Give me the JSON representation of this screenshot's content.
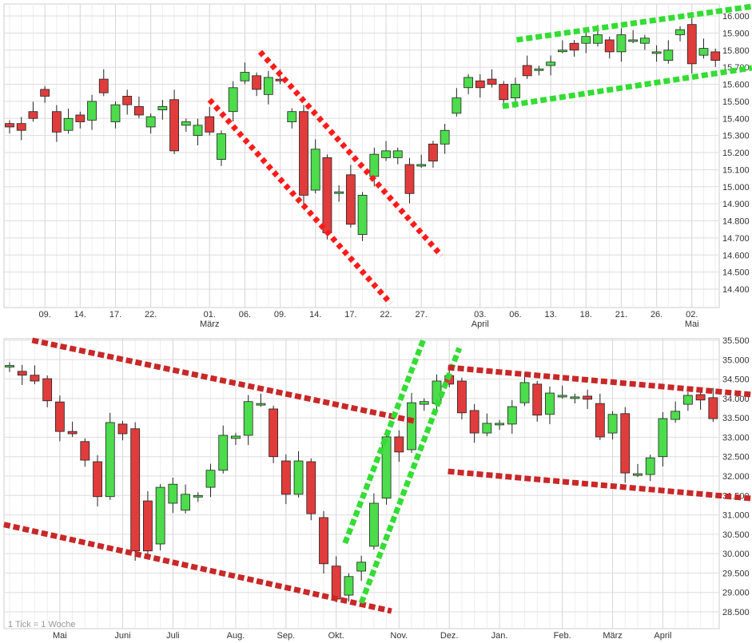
{
  "colors": {
    "up": "#4cdc4c",
    "down": "#e03c3c",
    "grid": "#dddddd",
    "trend_red_top": "#ff1a1a",
    "trend_red_bottom": "#c82828",
    "trend_green": "#33dd33"
  },
  "chart_data": [
    {
      "type": "candlestick",
      "interval": "daily",
      "ylim": [
        14300,
        16080
      ],
      "yticks": [
        "14.400",
        "14.500",
        "14.600",
        "14.700",
        "14.800",
        "14.900",
        "15.000",
        "15.100",
        "15.200",
        "15.300",
        "15.400",
        "15.500",
        "15.600",
        "15.700",
        "15.800",
        "15.900",
        "16.000"
      ],
      "xticks": [
        {
          "i": 3,
          "label": "09."
        },
        {
          "i": 6,
          "label": "14."
        },
        {
          "i": 9,
          "label": "17."
        },
        {
          "i": 12,
          "label": "22."
        },
        {
          "i": 17,
          "label": "01.",
          "month": "März"
        },
        {
          "i": 20,
          "label": "06."
        },
        {
          "i": 23,
          "label": "09."
        },
        {
          "i": 26,
          "label": "14."
        },
        {
          "i": 29,
          "label": "17."
        },
        {
          "i": 32,
          "label": "22."
        },
        {
          "i": 35,
          "label": "27."
        },
        {
          "i": 40,
          "label": "03.",
          "month": "April"
        },
        {
          "i": 43,
          "label": "06."
        },
        {
          "i": 46,
          "label": "13."
        },
        {
          "i": 49,
          "label": "18."
        },
        {
          "i": 52,
          "label": "21."
        },
        {
          "i": 55,
          "label": "26."
        },
        {
          "i": 58,
          "label": "02.",
          "month": "Mai"
        }
      ],
      "oc": [
        [
          15370,
          15350
        ],
        [
          15370,
          15330
        ],
        [
          15440,
          15400
        ],
        [
          15570,
          15530
        ],
        [
          15440,
          15320
        ],
        [
          15330,
          15400
        ],
        [
          15420,
          15380
        ],
        [
          15390,
          15500
        ],
        [
          15630,
          15550
        ],
        [
          15380,
          15480
        ],
        [
          15530,
          15480
        ],
        [
          15470,
          15420
        ],
        [
          15350,
          15410
        ],
        [
          15450,
          15470
        ],
        [
          15510,
          15210
        ],
        [
          15360,
          15380
        ],
        [
          15300,
          15360
        ],
        [
          15410,
          15320
        ],
        [
          15160,
          15310
        ],
        [
          15440,
          15580
        ],
        [
          15620,
          15670
        ],
        [
          15650,
          15570
        ],
        [
          15540,
          15640
        ],
        [
          15630,
          15620
        ],
        [
          15380,
          15440
        ],
        [
          15440,
          14950
        ],
        [
          14980,
          15220
        ],
        [
          15170,
          14730
        ],
        [
          14970,
          14970
        ],
        [
          15070,
          14780
        ],
        [
          14720,
          14950
        ],
        [
          15060,
          15190
        ],
        [
          15170,
          15210
        ],
        [
          15170,
          15210
        ],
        [
          15130,
          14960
        ],
        [
          15130,
          15130
        ],
        [
          15250,
          15150
        ],
        [
          15250,
          15330
        ],
        [
          15430,
          15520
        ],
        [
          15580,
          15640
        ],
        [
          15620,
          15580
        ],
        [
          15630,
          15600
        ],
        [
          15600,
          15510
        ],
        [
          15520,
          15600
        ],
        [
          15710,
          15650
        ],
        [
          15690,
          15690
        ],
        [
          15710,
          15730
        ],
        [
          15800,
          15800
        ],
        [
          15840,
          15800
        ],
        [
          15840,
          15880
        ],
        [
          15840,
          15890
        ],
        [
          15860,
          15790
        ],
        [
          15790,
          15890
        ],
        [
          15860,
          15860
        ],
        [
          15840,
          15870
        ],
        [
          15790,
          15790
        ],
        [
          15740,
          15800
        ],
        [
          15890,
          15920
        ],
        [
          15950,
          15720
        ],
        [
          15770,
          15810
        ],
        [
          15790,
          15740
        ]
      ],
      "trendlines": [
        {
          "color": "red",
          "from": [
            17,
            15509
          ],
          "to": [
            32.4,
            14316
          ]
        },
        {
          "color": "red",
          "from": [
            21.3,
            15790
          ],
          "to": [
            36.7,
            14597
          ]
        },
        {
          "color": "green",
          "from": [
            43.1,
            15860
          ],
          "to": [
            63.1,
            16056
          ]
        },
        {
          "color": "green",
          "from": [
            41.9,
            15471
          ],
          "to": [
            63.1,
            15696
          ]
        }
      ]
    },
    {
      "type": "candlestick",
      "interval": "weekly",
      "note": "1 Tick = 1 Woche",
      "ylim": [
        28200,
        35550
      ],
      "yticks": [
        "28.500",
        "29.000",
        "29.500",
        "30.000",
        "30.500",
        "31.000",
        "31.500",
        "32.000",
        "32.500",
        "33.000",
        "33.500",
        "34.000",
        "34.500",
        "35.000",
        "35.500"
      ],
      "xticks": [
        {
          "i": 4,
          "label": "Mai"
        },
        {
          "i": 9,
          "label": "Juni"
        },
        {
          "i": 13,
          "label": "Juli"
        },
        {
          "i": 18,
          "label": "Aug."
        },
        {
          "i": 22,
          "label": "Sep."
        },
        {
          "i": 26,
          "label": "Okt."
        },
        {
          "i": 31,
          "label": "Nov."
        },
        {
          "i": 35,
          "label": "Dez."
        },
        {
          "i": 39,
          "label": "Jan."
        },
        {
          "i": 44,
          "label": "Feb."
        },
        {
          "i": 48,
          "label": "März"
        },
        {
          "i": 52,
          "label": "April"
        }
      ],
      "oc": [
        [
          34850,
          34850
        ],
        [
          34700,
          34600
        ],
        [
          34600,
          34450
        ],
        [
          34510,
          33940
        ],
        [
          33910,
          33150
        ],
        [
          33150,
          33090
        ],
        [
          32890,
          32410
        ],
        [
          32370,
          31470
        ],
        [
          31470,
          33380
        ],
        [
          33340,
          33090
        ],
        [
          33220,
          30070
        ],
        [
          31360,
          30070
        ],
        [
          30250,
          31710
        ],
        [
          31300,
          31790
        ],
        [
          31120,
          31530
        ],
        [
          31500,
          31500
        ],
        [
          31710,
          32150
        ],
        [
          32150,
          33050
        ],
        [
          32970,
          33030
        ],
        [
          33050,
          33920
        ],
        [
          33870,
          33870
        ],
        [
          33730,
          32500
        ],
        [
          32390,
          31530
        ],
        [
          31530,
          32390
        ],
        [
          32370,
          31030
        ],
        [
          30930,
          29740
        ],
        [
          29680,
          28830
        ],
        [
          28930,
          29410
        ],
        [
          29550,
          29780
        ],
        [
          30190,
          31300
        ],
        [
          31430,
          33010
        ],
        [
          33010,
          32620
        ],
        [
          32680,
          33890
        ],
        [
          33850,
          33920
        ],
        [
          33870,
          34450
        ],
        [
          34590,
          34370
        ],
        [
          34450,
          33630
        ],
        [
          33690,
          33110
        ],
        [
          33110,
          33360
        ],
        [
          33360,
          33360
        ],
        [
          33340,
          33790
        ],
        [
          33890,
          34410
        ],
        [
          34370,
          33570
        ],
        [
          33590,
          34140
        ],
        [
          34080,
          34080
        ],
        [
          34040,
          34040
        ],
        [
          34060,
          33980
        ],
        [
          33870,
          33010
        ],
        [
          33110,
          33590
        ],
        [
          33610,
          32080
        ],
        [
          32060,
          32060
        ],
        [
          32040,
          32470
        ],
        [
          32500,
          33480
        ],
        [
          33460,
          33670
        ],
        [
          33850,
          34080
        ],
        [
          34100,
          33960
        ],
        [
          34020,
          33480
        ]
      ],
      "trendlines": [
        {
          "color": "red",
          "from": [
            1.8,
            35500
          ],
          "to": [
            32.2,
            33420
          ]
        },
        {
          "color": "red",
          "from": [
            -0.45,
            30750
          ],
          "to": [
            30.4,
            28520
          ]
        },
        {
          "color": "green",
          "from": [
            26.7,
            30270
          ],
          "to": [
            32.95,
            35520
          ]
        },
        {
          "color": "green",
          "from": [
            28,
            28730
          ],
          "to": [
            35.8,
            35300
          ]
        },
        {
          "color": "red",
          "from": [
            34.9,
            34800
          ],
          "to": [
            59.1,
            34100
          ]
        },
        {
          "color": "red",
          "from": [
            34.9,
            32120
          ],
          "to": [
            59.1,
            31420
          ]
        }
      ]
    }
  ]
}
